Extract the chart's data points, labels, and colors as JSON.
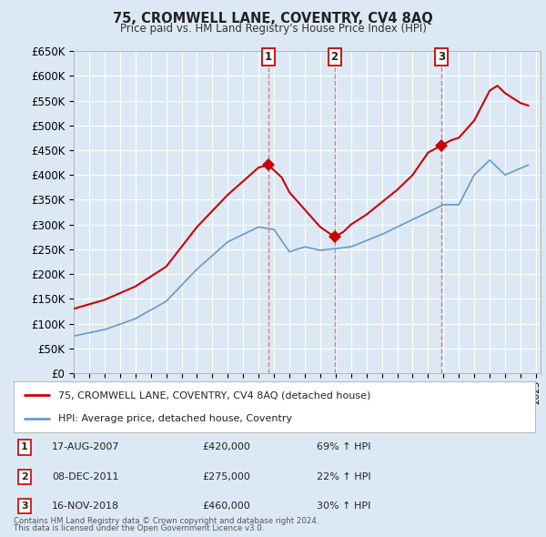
{
  "title": "75, CROMWELL LANE, COVENTRY, CV4 8AQ",
  "subtitle": "Price paid vs. HM Land Registry's House Price Index (HPI)",
  "ylim": [
    0,
    650000
  ],
  "yticks": [
    0,
    50000,
    100000,
    150000,
    200000,
    250000,
    300000,
    350000,
    400000,
    450000,
    500000,
    550000,
    600000,
    650000
  ],
  "background_color": "#dce9f5",
  "grid_color": "#ffffff",
  "red_color": "#cc0000",
  "blue_color": "#6699cc",
  "sales": [
    {
      "date_num": 2007.63,
      "price": 420000,
      "label": "1"
    },
    {
      "date_num": 2011.93,
      "price": 275000,
      "label": "2"
    },
    {
      "date_num": 2018.88,
      "price": 460000,
      "label": "3"
    }
  ],
  "sale_dates_str": [
    "17-AUG-2007",
    "08-DEC-2011",
    "16-NOV-2018"
  ],
  "sale_prices_str": [
    "£420,000",
    "£275,000",
    "£460,000"
  ],
  "sale_hpi_str": [
    "69% ↑ HPI",
    "22% ↑ HPI",
    "30% ↑ HPI"
  ],
  "legend_label_red": "75, CROMWELL LANE, COVENTRY, CV4 8AQ (detached house)",
  "legend_label_blue": "HPI: Average price, detached house, Coventry",
  "footer1": "Contains HM Land Registry data © Crown copyright and database right 2024.",
  "footer2": "This data is licensed under the Open Government Licence v3.0."
}
